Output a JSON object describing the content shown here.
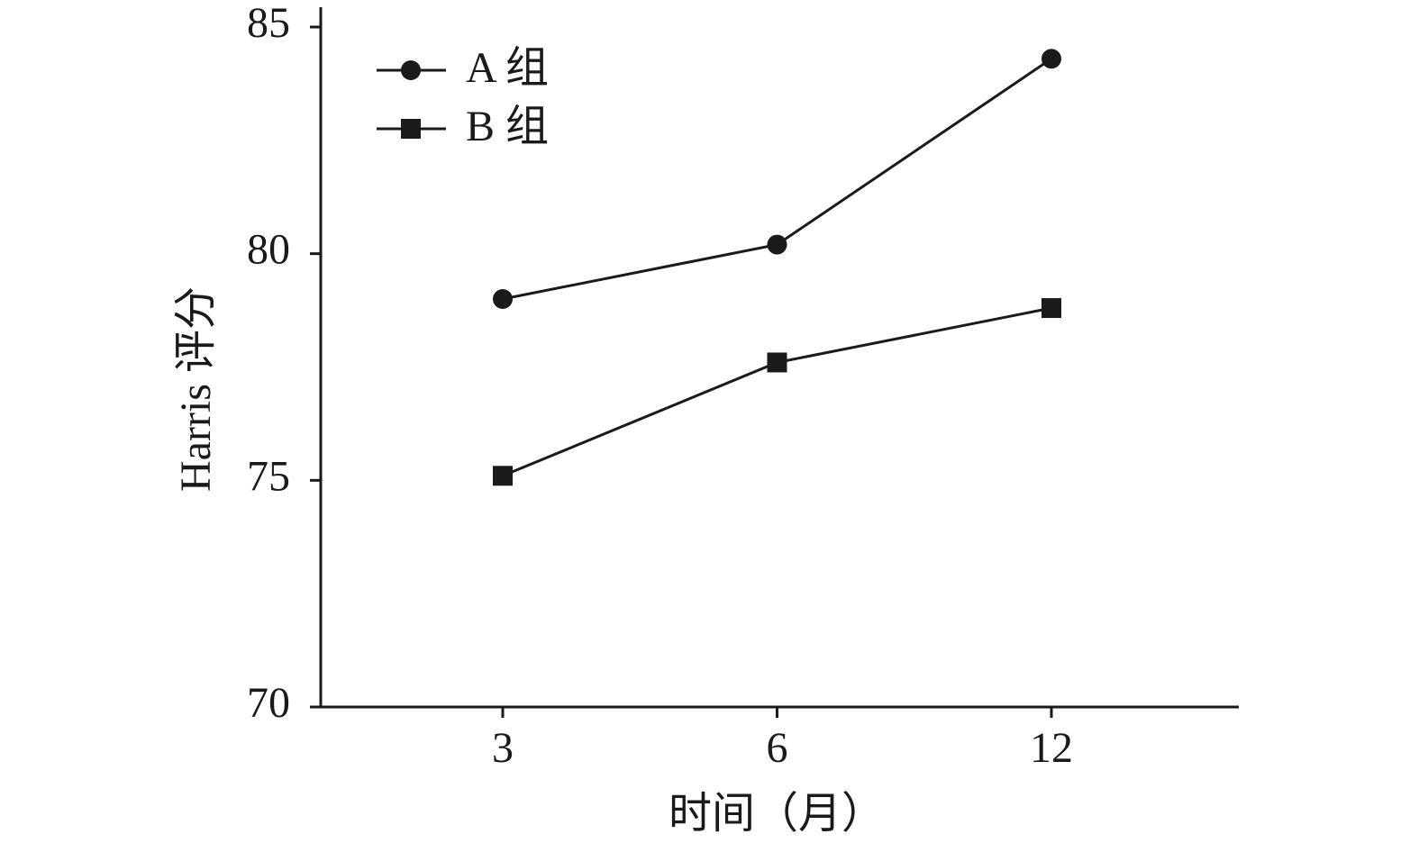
{
  "chart_data": {
    "type": "line",
    "x_label": "时间（月）",
    "y_label": "Harris 评分",
    "categories": [
      "3",
      "6",
      "12"
    ],
    "series": [
      {
        "name": "A 组",
        "color": "#1a1a1a",
        "marker": "circle",
        "values": [
          79.0,
          80.2,
          84.3
        ]
      },
      {
        "name": "B 组",
        "color": "#1a1a1a",
        "marker": "square",
        "values": [
          75.1,
          77.6,
          78.8
        ]
      }
    ],
    "ylim": [
      70,
      85
    ],
    "yticks": [
      70,
      75,
      80,
      85
    ],
    "grid": false,
    "legend": "upper left"
  }
}
